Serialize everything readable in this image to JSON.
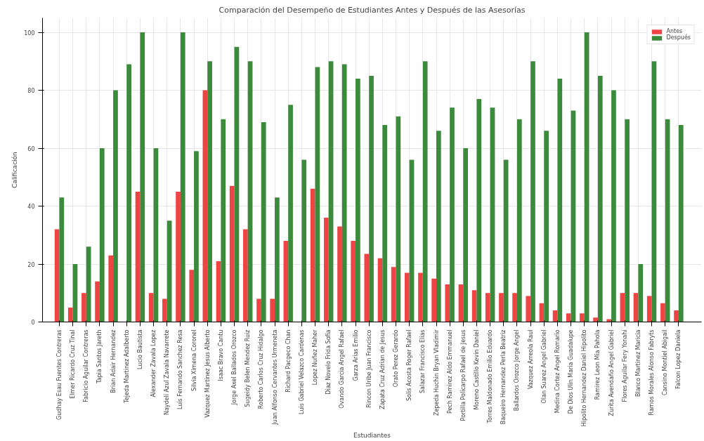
{
  "chart_data": {
    "type": "bar",
    "title": "Comparación del Desempeño de Estudiantes Antes y Después de las Asesorías",
    "xlabel": "Estudiantes",
    "ylabel": "Calificación",
    "categories": [
      "Gudhay Esau Fuentes Contreras",
      "Elmer Ricardo Cruz Tinal",
      "Fabricio Aguilar Contreras",
      "Tapia Santos Jareth",
      "Brian Adair Hernandez",
      "Tejeda Martinez Adalberto",
      "Lucio Bautista",
      "Alexander Zavala Lopez",
      "Naydeli Azul Zavala Navarrete",
      "Luis Fernando Sanchez Resa",
      "Silvia Ximena Coronel",
      "Vazquez Martinez Jesus Alberto",
      "Isaac Bravo Cantu",
      "Jorge Axel Ballados Orozco",
      "Sugeidy Belen Mendez Ruiz",
      "Roberto Carlos Cruz Hidalgo",
      "Juan Alfonso Cervantes Urmeneta",
      "Richard Pacgeco Chan",
      "Luis Gabriel Velazco Cardenas",
      "Lopez Nuñez Maher",
      "Diaz Novelo Frida Sofia",
      "Ovando Garcia Angel Rafael",
      "Garza Arias Emilio",
      "Rincon Uribe Juan Francisco",
      "Zapata Cruz Adrian de Jesus",
      "Orato Perez Gerardo",
      "Solis Acosta Roger Rafael",
      "Salazar Francisco Elias",
      "Zepeda Huchin Bryan Vladimir",
      "Pech Ramirez Aldo Emmanuel",
      "Portilla Policarpo Rafael de Jesus",
      "Moreno Castillo Kevin Daniel",
      "Torres Maldonado Emilio Eduardo",
      "Baqueiro Hernandez Perla Beatriz",
      "Ballardos Orozco Jorge Angel",
      "Vazquez Arreola Raul",
      "Olan Suarez Angel Gabriel",
      "Medina Cortez Angel Romario",
      "De Dios Ulin Maria Guadalupe",
      "Hipolito Hernandez Daniel Hipolito",
      "Ramirez Leon Mia Pahola",
      "Zurita Avendaño Angel Gabriel",
      "Flores Aguilar Fery Yonahi",
      "Blanco Martinez Maricia",
      "Ramos Morales Alonso Fabryts",
      "Cansino Montiel Abigail",
      "Falcon Lopez Daniela"
    ],
    "series": [
      {
        "name": "Antes",
        "color": "#ee4444",
        "values": [
          32,
          5,
          10,
          14,
          23,
          0,
          45,
          10,
          8,
          45,
          18,
          80,
          21,
          47,
          32,
          8,
          8,
          28,
          0,
          46,
          36,
          33,
          28,
          23.5,
          22,
          19,
          17,
          17,
          15,
          13,
          13,
          11,
          10,
          10,
          10,
          9,
          6.5,
          4,
          3,
          3,
          1.5,
          1,
          10,
          10,
          9,
          6.5,
          4
        ]
      },
      {
        "name": "Después",
        "color": "#3c8a3c",
        "values": [
          43,
          20,
          26,
          60,
          80,
          89,
          100,
          60,
          35,
          100,
          59,
          90,
          70,
          95,
          90,
          69,
          43,
          75,
          56,
          88,
          90,
          89,
          84,
          85,
          68,
          71,
          56,
          90,
          66,
          74,
          60,
          77,
          74,
          56,
          70,
          90,
          66,
          84,
          73,
          100,
          85,
          80,
          70,
          20,
          90,
          70,
          68
        ]
      }
    ],
    "ylim": [
      0,
      105
    ],
    "yticks": [
      0,
      20,
      40,
      60,
      80,
      100
    ],
    "grid": true,
    "legend": "top right"
  }
}
